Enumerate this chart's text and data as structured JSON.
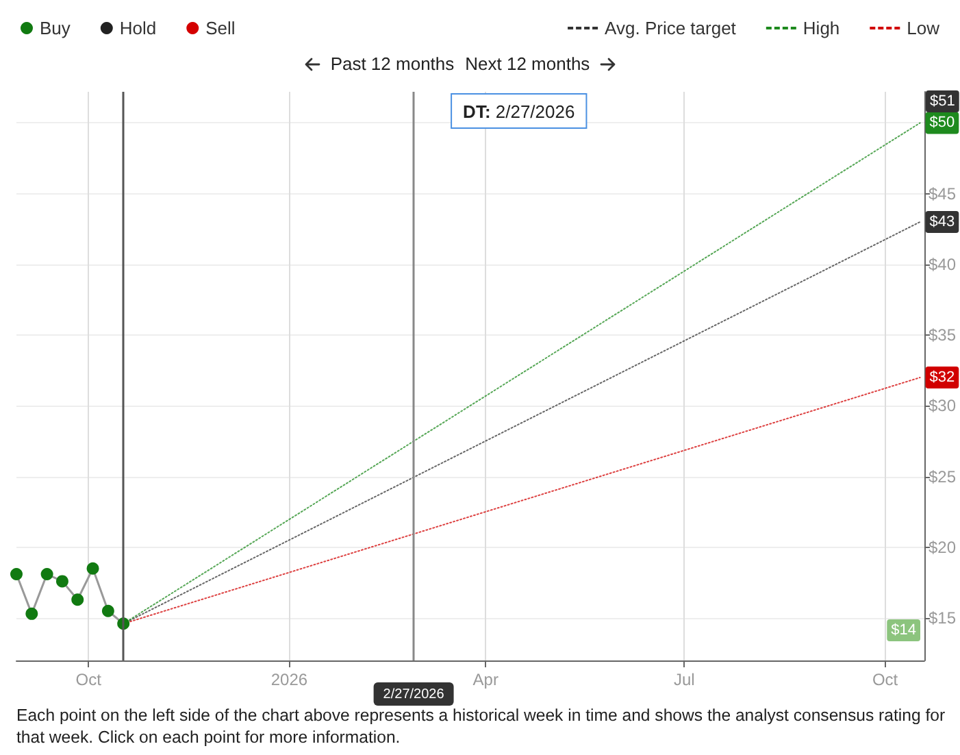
{
  "chart_data": {
    "type": "line",
    "annotations": [
      "Past 12 months",
      "Next 12 months",
      "DT: 2/27/2026",
      "Each point on the left side of the chart above represents a historical week in time and shows the analyst consensus rating for that week. Click on each point for more information.",
      "$51",
      "$14"
    ],
    "x": [
      "2025-08-29",
      "2025-09-05",
      "2025-09-12",
      "2025-09-19",
      "2025-09-26",
      "2025-10-03",
      "2025-10-10",
      "2025-10-17"
    ],
    "series": [
      {
        "color": "#999999",
        "values": [
          18.1,
          15.3,
          18.1,
          17.6,
          16.3,
          18.5,
          15.5,
          14.6
        ]
      },
      {
        "name": "Avg. Price target",
        "color": "#333333",
        "line_style": "dotted",
        "x": [
          "2025-10-17",
          "2026-10-17"
        ],
        "values": [
          14.6,
          43
        ],
        "value_labels": [
          null,
          "$43"
        ]
      },
      {
        "name": "High",
        "color": "#1e8a1e",
        "line_style": "dotted",
        "x": [
          "2025-10-17",
          "2026-10-17"
        ],
        "values": [
          14.6,
          50
        ],
        "value_labels": [
          null,
          "$50"
        ]
      },
      {
        "name": "Low",
        "color": "#d10000",
        "line_style": "dotted",
        "x": [
          "2025-10-17",
          "2026-10-17"
        ],
        "values": [
          14.6,
          32
        ],
        "value_labels": [
          null,
          "$32"
        ]
      },
      {
        "name": "Buy",
        "type": "scatter",
        "marker": "circle",
        "color": "#117a11",
        "values": [
          18.1,
          15.3,
          18.1,
          17.6,
          16.3,
          18.5,
          15.5,
          14.6
        ]
      },
      {
        "name": "Hold",
        "type": "scatter",
        "marker": "circle",
        "color": "#222222",
        "values": [
          null,
          null,
          null,
          null,
          null,
          null,
          null,
          null
        ]
      },
      {
        "name": "Sell",
        "type": "scatter",
        "marker": "circle",
        "color": "#d40000",
        "values": [
          null,
          null,
          null,
          null,
          null,
          null,
          null,
          null
        ]
      }
    ],
    "xlim": [
      "2025-08-29",
      "2026-10-19"
    ],
    "xticks": [
      {
        "value": "2025-10-01",
        "label": "Oct"
      },
      {
        "value": "2026-01-01",
        "label": "2026"
      },
      {
        "value": "2026-04-01",
        "label": "Apr"
      },
      {
        "value": "2026-07-01",
        "label": "Jul"
      },
      {
        "value": "2026-10-01",
        "label": "Oct"
      }
    ],
    "ylim": [
      12,
      52.2
    ],
    "yticks": [
      {
        "value": 15,
        "label": "$15"
      },
      {
        "value": 20,
        "label": "$20"
      },
      {
        "value": 25,
        "label": "$25"
      },
      {
        "value": 30,
        "label": "$30"
      },
      {
        "value": 35,
        "label": "$35"
      },
      {
        "value": 40,
        "label": "$40"
      },
      {
        "value": 45,
        "label": "$45"
      },
      {
        "value": 50,
        "label": null
      }
    ],
    "ref_lines": [
      {
        "axis": "x",
        "value": "2025-10-17",
        "color": "#555555"
      },
      {
        "axis": "x",
        "value": "2026-02-27",
        "label": "2/27/2026",
        "color": "#888888"
      }
    ],
    "grid": true,
    "legend": "top"
  }
}
